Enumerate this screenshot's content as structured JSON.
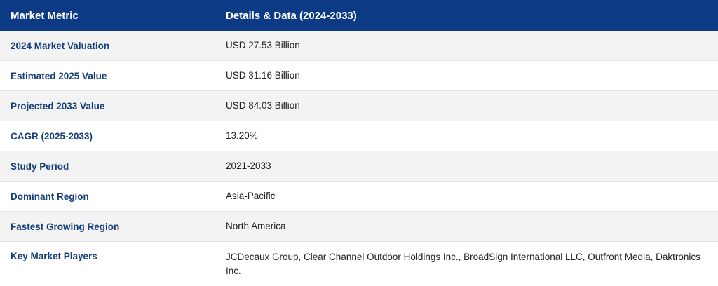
{
  "table": {
    "headers": {
      "metric": "Market Metric",
      "details": "Details & Data (2024-2033)"
    },
    "rows": [
      {
        "metric": "2024 Market Valuation",
        "value": "USD 27.53 Billion"
      },
      {
        "metric": "Estimated 2025 Value",
        "value": "USD 31.16 Billion"
      },
      {
        "metric": "Projected 2033 Value",
        "value": "USD 84.03 Billion"
      },
      {
        "metric": "CAGR (2025-2033)",
        "value": "13.20%"
      },
      {
        "metric": "Study Period",
        "value": "2021-2033"
      },
      {
        "metric": "Dominant Region",
        "value": "Asia-Pacific"
      },
      {
        "metric": "Fastest Growing Region",
        "value": "North America"
      },
      {
        "metric": "Key Market Players",
        "value": "JCDecaux Group, Clear Channel Outdoor Holdings Inc., BroadSign International LLC, Outfront Media, Daktronics Inc."
      }
    ]
  },
  "colors": {
    "header_bg": "#0d3a85",
    "metric_text": "#163f7a",
    "row_shade": "#f3f3f3"
  }
}
